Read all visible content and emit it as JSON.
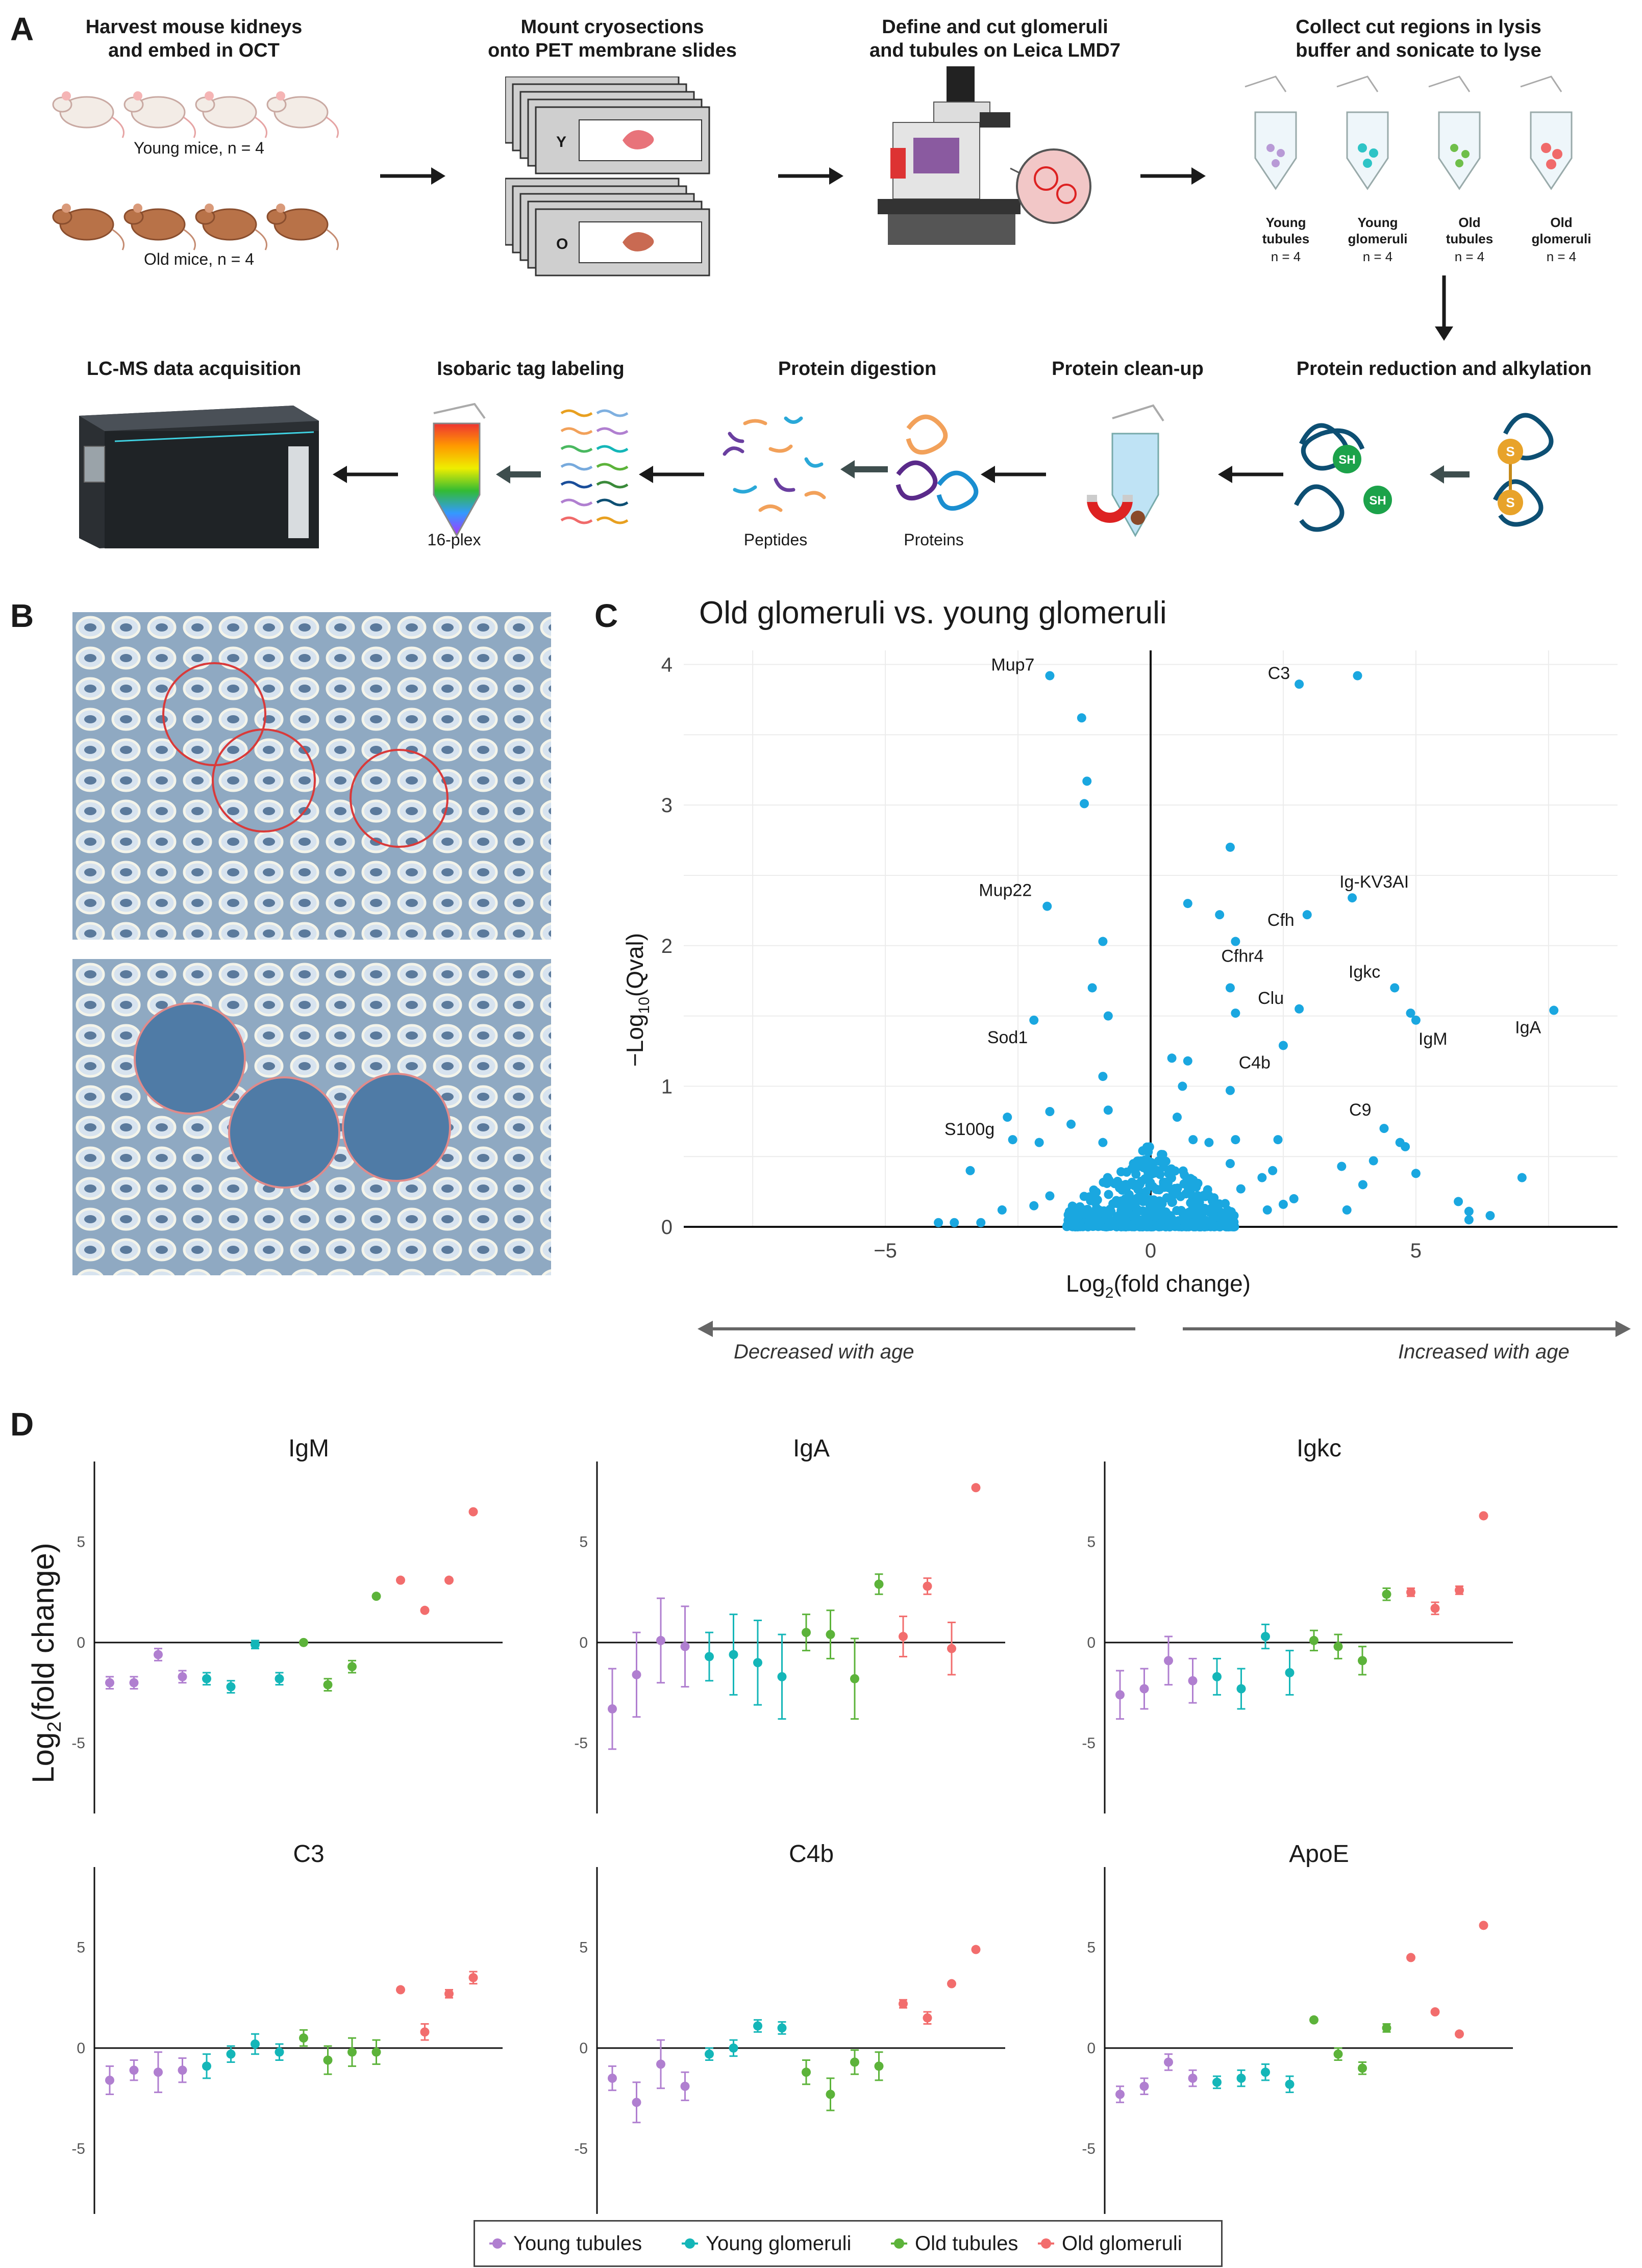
{
  "panel_a": {
    "letter": "A",
    "step1": {
      "title_line1": "Harvest mouse kidneys",
      "title_line2": "and embed in OCT",
      "young": "Young mice, n = 4",
      "old": "Old mice, n = 4"
    },
    "step2": {
      "title_line1": "Mount cryosections",
      "title_line2": "onto PET membrane slides",
      "slide_y": "Y",
      "slide_o": "O"
    },
    "step3": {
      "title_line1": "Define and cut glomeruli",
      "title_line2": "and tubules on Leica LMD7"
    },
    "step4": {
      "title_line1": "Collect cut regions in lysis",
      "title_line2": "buffer and sonicate to lyse",
      "tubes": [
        {
          "line1": "Young",
          "line2": "tubules",
          "n": "n = 4",
          "color": "#b89ad6"
        },
        {
          "line1": "Young",
          "line2": "glomeruli",
          "n": "n = 4",
          "color": "#2ec4c6"
        },
        {
          "line1": "Old",
          "line2": "tubules",
          "n": "n = 4",
          "color": "#6fbf4a"
        },
        {
          "line1": "Old",
          "line2": "glomeruli",
          "n": "n = 4",
          "color": "#f06a6a"
        }
      ]
    },
    "step5": {
      "title": "Protein reduction and alkylation",
      "sh": "SH",
      "s": "S"
    },
    "step6": {
      "title": "Protein clean-up"
    },
    "step7": {
      "title": "Protein digestion",
      "peptides": "Peptides",
      "proteins": "Proteins"
    },
    "step8": {
      "title": "Isobaric tag labeling",
      "plex": "16-plex"
    },
    "step9": {
      "title": "LC-MS data acquisition"
    }
  },
  "panel_b": {
    "letter": "B"
  },
  "panel_c": {
    "letter": "C",
    "left_arrow": "Decreased with age",
    "right_arrow": "Increased with age",
    "chart_data": {
      "type": "scatter",
      "title": "Old glomeruli vs. young glomeruli",
      "xlabel": "Log2(fold change)",
      "ylabel": "−Log10(Qval)",
      "xlim": [
        -8.8,
        8.8
      ],
      "ylim": [
        0,
        4.1
      ],
      "xticks": [
        -5,
        0,
        5
      ],
      "yticks": [
        0,
        1,
        2,
        3,
        4
      ],
      "point_color": "#1aa7e0",
      "labeled_points": [
        {
          "label": "Mup7",
          "x": -1.9,
          "y": 3.92
        },
        {
          "label": "C3",
          "x": 2.8,
          "y": 3.86
        },
        {
          "label": "Mup22",
          "x": -1.95,
          "y": 2.28
        },
        {
          "label": "Ig-KV3AI",
          "x": 3.8,
          "y": 2.34
        },
        {
          "label": "Cfh",
          "x": 2.95,
          "y": 2.22
        },
        {
          "label": "Cfhr4",
          "x": 1.6,
          "y": 2.03
        },
        {
          "label": "Igkc",
          "x": 4.6,
          "y": 1.7
        },
        {
          "label": "Clu",
          "x": 2.8,
          "y": 1.55
        },
        {
          "label": "IgM",
          "x": 5.0,
          "y": 1.47
        },
        {
          "label": "IgA",
          "x": 7.6,
          "y": 1.54
        },
        {
          "label": "Sod1",
          "x": -2.2,
          "y": 1.47
        },
        {
          "label": "C4b",
          "x": 2.5,
          "y": 1.29
        },
        {
          "label": "S100g",
          "x": -2.7,
          "y": 0.78
        },
        {
          "label": "C9",
          "x": 4.4,
          "y": 0.7
        }
      ],
      "other_points": [
        [
          3.9,
          3.92
        ],
        [
          -1.3,
          3.62
        ],
        [
          -1.2,
          3.17
        ],
        [
          -1.25,
          3.01
        ],
        [
          1.5,
          2.7
        ],
        [
          0.7,
          2.3
        ],
        [
          1.3,
          2.22
        ],
        [
          -0.9,
          2.03
        ],
        [
          -1.1,
          1.7
        ],
        [
          -0.8,
          1.5
        ],
        [
          1.5,
          1.7
        ],
        [
          1.6,
          1.52
        ],
        [
          4.9,
          1.52
        ],
        [
          0.4,
          1.2
        ],
        [
          0.7,
          1.18
        ],
        [
          -0.9,
          1.07
        ],
        [
          -0.8,
          0.83
        ],
        [
          -1.9,
          0.82
        ],
        [
          0.6,
          1.0
        ],
        [
          1.5,
          0.97
        ],
        [
          -2.1,
          0.6
        ],
        [
          -2.6,
          0.62
        ],
        [
          -1.5,
          0.73
        ],
        [
          -0.9,
          0.6
        ],
        [
          1.6,
          0.62
        ],
        [
          1.1,
          0.6
        ],
        [
          2.4,
          0.62
        ],
        [
          0.5,
          0.78
        ],
        [
          0.8,
          0.62
        ],
        [
          4.7,
          0.6
        ],
        [
          3.6,
          0.43
        ],
        [
          4.0,
          0.3
        ],
        [
          4.2,
          0.47
        ],
        [
          4.8,
          0.57
        ],
        [
          5.0,
          0.38
        ],
        [
          3.7,
          0.12
        ],
        [
          5.8,
          0.18
        ],
        [
          6.0,
          0.11
        ],
        [
          6.0,
          0.05
        ],
        [
          6.4,
          0.08
        ],
        [
          7.0,
          0.35
        ],
        [
          2.1,
          0.35
        ],
        [
          2.3,
          0.4
        ],
        [
          2.5,
          0.16
        ],
        [
          1.5,
          0.45
        ],
        [
          1.7,
          0.27
        ],
        [
          -3.4,
          0.4
        ],
        [
          -4.0,
          0.03
        ],
        [
          -3.7,
          0.03
        ],
        [
          -3.2,
          0.03
        ],
        [
          -2.8,
          0.12
        ],
        [
          2.7,
          0.2
        ],
        [
          2.2,
          0.12
        ],
        [
          -1.9,
          0.22
        ],
        [
          -2.2,
          0.15
        ]
      ]
    }
  },
  "panel_d": {
    "letter": "D",
    "ylabel": "Log2(fold change)",
    "yticks": [
      -5,
      0,
      5
    ],
    "groups": [
      {
        "name": "Young tubules",
        "color": "#b07fd0"
      },
      {
        "name": "Young glomeruli",
        "color": "#14b6b8"
      },
      {
        "name": "Old tubules",
        "color": "#5cb33a"
      },
      {
        "name": "Old glomeruli",
        "color": "#f26d6d"
      }
    ],
    "chart_data": [
      {
        "type": "scatter",
        "title": "IgM",
        "ylim": [
          -8.5,
          9
        ],
        "points": [
          [
            -2.0,
            0.3
          ],
          [
            -2.0,
            0.3
          ],
          [
            -0.6,
            0.3
          ],
          [
            -1.7,
            0.3
          ],
          [
            -1.8,
            0.3
          ],
          [
            -2.2,
            0.3
          ],
          [
            -0.1,
            0.2
          ],
          [
            -1.8,
            0.3
          ],
          [
            0.0,
            0.1
          ],
          [
            -2.1,
            0.3
          ],
          [
            -1.2,
            0.3
          ],
          [
            2.3,
            0.1
          ],
          [
            3.1,
            0.1
          ],
          [
            1.6,
            0.1
          ],
          [
            3.1,
            0.1
          ],
          [
            6.5,
            0.1
          ]
        ]
      },
      {
        "type": "scatter",
        "title": "IgA",
        "ylim": [
          -8.5,
          9
        ],
        "points": [
          [
            -3.3,
            2.0
          ],
          [
            -1.6,
            2.1
          ],
          [
            0.1,
            2.1
          ],
          [
            -0.2,
            2.0
          ],
          [
            -0.7,
            1.2
          ],
          [
            -0.6,
            2.0
          ],
          [
            -1.0,
            2.1
          ],
          [
            -1.7,
            2.1
          ],
          [
            0.5,
            0.9
          ],
          [
            0.4,
            1.2
          ],
          [
            -1.8,
            2.0
          ],
          [
            2.9,
            0.5
          ],
          [
            0.3,
            1.0
          ],
          [
            2.8,
            0.4
          ],
          [
            -0.3,
            1.3
          ],
          [
            7.7,
            0.1
          ]
        ]
      },
      {
        "type": "scatter",
        "title": "Igkc",
        "ylim": [
          -8.5,
          9
        ],
        "points": [
          [
            -2.6,
            1.2
          ],
          [
            -2.3,
            1.0
          ],
          [
            -0.9,
            1.2
          ],
          [
            -1.9,
            1.1
          ],
          [
            -1.7,
            0.9
          ],
          [
            -2.3,
            1.0
          ],
          [
            0.3,
            0.6
          ],
          [
            -1.5,
            1.1
          ],
          [
            0.1,
            0.5
          ],
          [
            -0.2,
            0.6
          ],
          [
            -0.9,
            0.7
          ],
          [
            2.4,
            0.3
          ],
          [
            2.5,
            0.2
          ],
          [
            1.7,
            0.3
          ],
          [
            2.6,
            0.2
          ],
          [
            6.3,
            0.1
          ]
        ]
      },
      {
        "type": "scatter",
        "title": "C3",
        "ylim": [
          -8.5,
          9
        ],
        "points": [
          [
            -1.6,
            0.7
          ],
          [
            -1.1,
            0.5
          ],
          [
            -1.2,
            1.0
          ],
          [
            -1.1,
            0.6
          ],
          [
            -0.9,
            0.6
          ],
          [
            -0.3,
            0.4
          ],
          [
            0.2,
            0.5
          ],
          [
            -0.2,
            0.4
          ],
          [
            0.5,
            0.4
          ],
          [
            -0.6,
            0.7
          ],
          [
            -0.2,
            0.7
          ],
          [
            -0.2,
            0.6
          ],
          [
            2.9,
            0.1
          ],
          [
            0.8,
            0.4
          ],
          [
            2.7,
            0.2
          ],
          [
            3.5,
            0.3
          ]
        ]
      },
      {
        "type": "scatter",
        "title": "C4b",
        "ylim": [
          -8.5,
          9
        ],
        "points": [
          [
            -1.5,
            0.6
          ],
          [
            -2.7,
            1.0
          ],
          [
            -0.8,
            1.2
          ],
          [
            -1.9,
            0.7
          ],
          [
            -0.3,
            0.3
          ],
          [
            0.0,
            0.4
          ],
          [
            1.1,
            0.3
          ],
          [
            1.0,
            0.3
          ],
          [
            -1.2,
            0.6
          ],
          [
            -2.3,
            0.8
          ],
          [
            -0.7,
            0.6
          ],
          [
            -0.9,
            0.7
          ],
          [
            2.2,
            0.2
          ],
          [
            1.5,
            0.3
          ],
          [
            3.2,
            0.1
          ],
          [
            4.9,
            0.1
          ]
        ]
      },
      {
        "type": "scatter",
        "title": "ApoE",
        "ylim": [
          -8.5,
          9
        ],
        "points": [
          [
            -2.3,
            0.4
          ],
          [
            -1.9,
            0.4
          ],
          [
            -0.7,
            0.4
          ],
          [
            -1.5,
            0.4
          ],
          [
            -1.7,
            0.3
          ],
          [
            -1.5,
            0.4
          ],
          [
            -1.2,
            0.4
          ],
          [
            -1.8,
            0.4
          ],
          [
            1.4,
            0.1
          ],
          [
            -0.3,
            0.3
          ],
          [
            -1.0,
            0.3
          ],
          [
            1.0,
            0.2
          ],
          [
            4.5,
            0.1
          ],
          [
            1.8,
            0.1
          ],
          [
            0.7,
            0.1
          ],
          [
            6.1,
            0.1
          ]
        ]
      }
    ]
  }
}
